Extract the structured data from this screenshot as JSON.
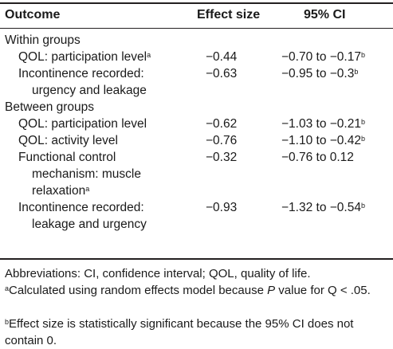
{
  "header": {
    "outcome": "Outcome",
    "effect_size": "Effect size",
    "ci": "95% CI"
  },
  "sections": {
    "within": {
      "label": "Within groups",
      "rows": [
        {
          "lines": [
            "QOL: participation level"
          ],
          "sup": "a",
          "effect_size": "−0.44",
          "ci": "−0.70 to −0.17",
          "ci_sup": "b"
        },
        {
          "lines": [
            "Incontinence recorded:",
            "urgency and leakage"
          ],
          "sup": "",
          "effect_size": "−0.63",
          "ci": "−0.95 to −0.3",
          "ci_sup": "b"
        }
      ]
    },
    "between": {
      "label": "Between groups",
      "rows": [
        {
          "lines": [
            "QOL: participation level"
          ],
          "sup": "",
          "effect_size": "−0.62",
          "ci": "−1.03 to −0.21",
          "ci_sup": "b"
        },
        {
          "lines": [
            "QOL: activity level"
          ],
          "sup": "",
          "effect_size": "−0.76",
          "ci": "−1.10 to −0.42",
          "ci_sup": "b"
        },
        {
          "lines": [
            "Functional control",
            "mechanism: muscle",
            "relaxation"
          ],
          "sup": "a",
          "effect_size": "−0.32",
          "ci": "−0.76 to 0.12",
          "ci_sup": ""
        },
        {
          "lines": [
            "Incontinence recorded:",
            "leakage and urgency"
          ],
          "sup": "",
          "effect_size": "−0.93",
          "ci": "−1.32 to −0.54",
          "ci_sup": "b"
        }
      ]
    }
  },
  "footnotes": {
    "abbreviations": "Abbreviations: CI, confidence interval; QOL, quality of life.",
    "a_mark": "a",
    "a_text_1": "Calculated using random effects model because ",
    "a_italic": "P",
    "a_text_2": " value for Q < .05.",
    "b_mark": "b",
    "b_text": "Effect size is statistically significant because the 95% CI does not contain 0."
  }
}
